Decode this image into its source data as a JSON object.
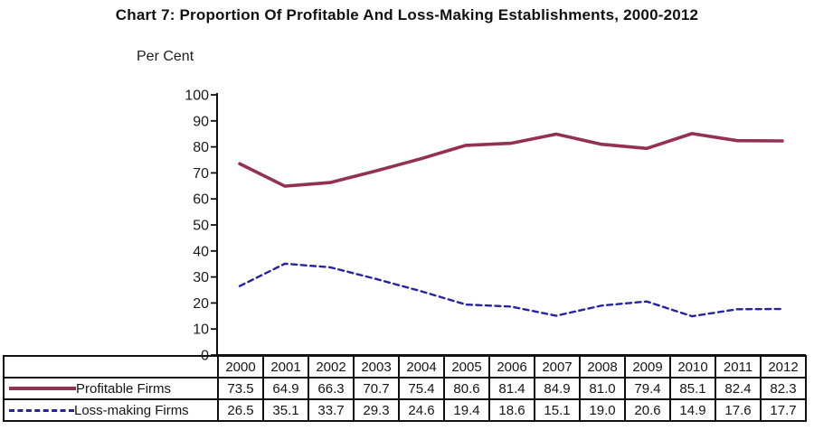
{
  "title": "Chart 7: Proportion Of Profitable And Loss-Making Establishments, 2000-2012",
  "chart_data": {
    "type": "line",
    "title": "Chart 7: Proportion Of Profitable And Loss-Making Establishments, 2000-2012",
    "ylabel": "Per Cent",
    "xlabel": "",
    "categories": [
      "2000",
      "2001",
      "2002",
      "2003",
      "2004",
      "2005",
      "2006",
      "2007",
      "2008",
      "2009",
      "2010",
      "2011",
      "2012"
    ],
    "series": [
      {
        "name": "Profitable Firms",
        "values": [
          73.5,
          64.9,
          66.3,
          70.7,
          75.4,
          80.6,
          81.4,
          84.9,
          81.0,
          79.4,
          85.1,
          82.4,
          82.3
        ],
        "color": "#933250",
        "line_style": "solid"
      },
      {
        "name": "Loss-making Firms",
        "values": [
          26.5,
          35.1,
          33.7,
          29.3,
          24.6,
          19.4,
          18.6,
          15.1,
          19.0,
          20.6,
          14.9,
          17.6,
          17.7
        ],
        "color": "#2424a2",
        "line_style": "dashed"
      }
    ],
    "ylim": [
      0,
      100
    ],
    "yticks": [
      0,
      10,
      20,
      30,
      40,
      50,
      60,
      70,
      80,
      90,
      100
    ],
    "grid": false,
    "legend_position": "table-left",
    "values_shown_in_table": true
  }
}
